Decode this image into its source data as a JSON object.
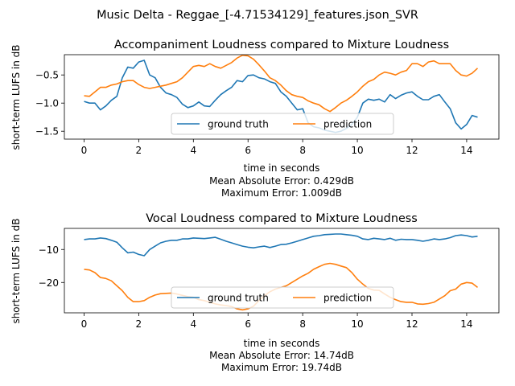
{
  "figure": {
    "suptitle": "Music Delta - Reggae_[-4.71534129]_features.json_SVR"
  },
  "colors": {
    "ground_truth": "#1f77b4",
    "prediction": "#ff7f0e",
    "axes": "#000000",
    "legend_border": "#cccccc"
  },
  "chart_data": [
    {
      "type": "line",
      "title": "Accompaniment Loudness compared to Mixture Loudness",
      "xlabel": "time in seconds",
      "ylabel": "short-term LUFS in dB",
      "xlim": [
        -0.72,
        15.18
      ],
      "ylim": [
        -1.64,
        -0.14
      ],
      "xticks": [
        0,
        2,
        4,
        6,
        8,
        10,
        12,
        14
      ],
      "yticks": [
        -1.5,
        -1.0,
        -0.5
      ],
      "ytick_labels": [
        "−1.5",
        "−1.0",
        "−0.5"
      ],
      "grid": false,
      "legend": {
        "placement": "lower center",
        "columns": 2
      },
      "stats": [
        "Mean Absolute Error: 0.429dB",
        "Maximum Error: 1.009dB"
      ],
      "series": [
        {
          "name": "ground truth",
          "x": [
            0,
            0.2,
            0.4,
            0.6,
            0.8,
            1.0,
            1.2,
            1.4,
            1.6,
            1.8,
            2.0,
            2.2,
            2.4,
            2.6,
            2.8,
            3.0,
            3.2,
            3.4,
            3.6,
            3.8,
            4.0,
            4.2,
            4.4,
            4.6,
            4.8,
            5.0,
            5.2,
            5.4,
            5.6,
            5.8,
            6.0,
            6.2,
            6.4,
            6.6,
            6.8,
            7.0,
            7.2,
            7.4,
            7.6,
            7.8,
            8.0,
            8.2,
            8.4,
            8.6,
            8.8,
            9.0,
            9.2,
            9.4,
            9.6,
            9.8,
            10.0,
            10.2,
            10.4,
            10.6,
            10.8,
            11.0,
            11.2,
            11.4,
            11.6,
            11.8,
            12.0,
            12.2,
            12.4,
            12.6,
            12.8,
            13.0,
            13.2,
            13.4,
            13.6,
            13.8,
            14.0,
            14.2,
            14.4
          ],
          "values": [
            -0.97,
            -1.0,
            -1.0,
            -1.12,
            -1.05,
            -0.95,
            -0.88,
            -0.55,
            -0.36,
            -0.38,
            -0.27,
            -0.24,
            -0.5,
            -0.55,
            -0.72,
            -0.82,
            -0.85,
            -0.9,
            -1.02,
            -1.08,
            -1.05,
            -0.98,
            -1.05,
            -1.06,
            -0.95,
            -0.85,
            -0.78,
            -0.72,
            -0.6,
            -0.62,
            -0.51,
            -0.5,
            -0.55,
            -0.57,
            -0.62,
            -0.65,
            -0.8,
            -0.88,
            -1.0,
            -1.12,
            -1.1,
            -1.35,
            -1.42,
            -1.44,
            -1.48,
            -1.5,
            -1.52,
            -1.5,
            -1.45,
            -1.38,
            -1.25,
            -1.0,
            -0.93,
            -0.95,
            -0.93,
            -0.98,
            -0.85,
            -0.92,
            -0.86,
            -0.82,
            -0.8,
            -0.88,
            -0.94,
            -0.94,
            -0.88,
            -0.85,
            -0.98,
            -1.1,
            -1.35,
            -1.46,
            -1.38,
            -1.22,
            -1.25
          ]
        },
        {
          "name": "prediction",
          "x": [
            0,
            0.2,
            0.4,
            0.6,
            0.8,
            1.0,
            1.2,
            1.4,
            1.6,
            1.8,
            2.0,
            2.2,
            2.4,
            2.6,
            2.8,
            3.0,
            3.2,
            3.4,
            3.6,
            3.8,
            4.0,
            4.2,
            4.4,
            4.6,
            4.8,
            5.0,
            5.2,
            5.4,
            5.6,
            5.8,
            6.0,
            6.2,
            6.4,
            6.6,
            6.8,
            7.0,
            7.2,
            7.4,
            7.6,
            7.8,
            8.0,
            8.2,
            8.4,
            8.6,
            8.8,
            9.0,
            9.2,
            9.4,
            9.6,
            9.8,
            10.0,
            10.2,
            10.4,
            10.6,
            10.8,
            11.0,
            11.2,
            11.4,
            11.6,
            11.8,
            12.0,
            12.2,
            12.4,
            12.6,
            12.8,
            13.0,
            13.2,
            13.4,
            13.6,
            13.8,
            14.0,
            14.2,
            14.4
          ],
          "values": [
            -0.87,
            -0.88,
            -0.8,
            -0.72,
            -0.72,
            -0.68,
            -0.66,
            -0.62,
            -0.6,
            -0.6,
            -0.67,
            -0.72,
            -0.74,
            -0.72,
            -0.7,
            -0.68,
            -0.65,
            -0.62,
            -0.55,
            -0.45,
            -0.35,
            -0.33,
            -0.35,
            -0.3,
            -0.35,
            -0.38,
            -0.33,
            -0.28,
            -0.2,
            -0.15,
            -0.16,
            -0.22,
            -0.32,
            -0.43,
            -0.55,
            -0.6,
            -0.68,
            -0.78,
            -0.85,
            -0.88,
            -0.9,
            -0.96,
            -1.0,
            -1.03,
            -1.1,
            -1.15,
            -1.08,
            -1.0,
            -0.95,
            -0.88,
            -0.8,
            -0.7,
            -0.62,
            -0.58,
            -0.5,
            -0.45,
            -0.47,
            -0.5,
            -0.45,
            -0.42,
            -0.3,
            -0.3,
            -0.35,
            -0.27,
            -0.25,
            -0.3,
            -0.3,
            -0.3,
            -0.42,
            -0.5,
            -0.52,
            -0.47,
            -0.38
          ]
        }
      ]
    },
    {
      "type": "line",
      "title": "Vocal Loudness compared to Mixture Loudness",
      "xlabel": "time in seconds",
      "ylabel": "short-term LUFS in dB",
      "xlim": [
        -0.72,
        15.18
      ],
      "ylim": [
        -29.2,
        -3.6
      ],
      "xticks": [
        0,
        2,
        4,
        6,
        8,
        10,
        12,
        14
      ],
      "yticks": [
        -20,
        -10
      ],
      "ytick_labels": [
        "−20",
        "−10"
      ],
      "grid": false,
      "legend": {
        "placement": "lower center",
        "columns": 2
      },
      "stats": [
        "Mean Absolute Error: 14.74dB",
        "Maximum Error: 19.74dB"
      ],
      "series": [
        {
          "name": "ground truth",
          "x": [
            0,
            0.2,
            0.4,
            0.6,
            0.8,
            1.0,
            1.2,
            1.4,
            1.6,
            1.8,
            2.0,
            2.2,
            2.4,
            2.6,
            2.8,
            3.0,
            3.2,
            3.4,
            3.6,
            3.8,
            4.0,
            4.2,
            4.4,
            4.6,
            4.8,
            5.0,
            5.2,
            5.4,
            5.6,
            5.8,
            6.0,
            6.2,
            6.4,
            6.6,
            6.8,
            7.0,
            7.2,
            7.4,
            7.6,
            7.8,
            8.0,
            8.2,
            8.4,
            8.6,
            8.8,
            9.0,
            9.2,
            9.4,
            9.6,
            9.8,
            10.0,
            10.2,
            10.4,
            10.6,
            10.8,
            11.0,
            11.2,
            11.4,
            11.6,
            11.8,
            12.0,
            12.2,
            12.4,
            12.6,
            12.8,
            13.0,
            13.2,
            13.4,
            13.6,
            13.8,
            14.0,
            14.2,
            14.4
          ],
          "values": [
            -7.0,
            -6.8,
            -6.8,
            -6.5,
            -6.7,
            -7.2,
            -7.8,
            -9.5,
            -11.0,
            -10.8,
            -11.5,
            -11.9,
            -10.0,
            -9.0,
            -8.0,
            -7.5,
            -7.2,
            -7.2,
            -6.8,
            -6.8,
            -6.5,
            -6.6,
            -6.7,
            -6.5,
            -6.3,
            -6.9,
            -7.5,
            -8.0,
            -8.5,
            -9.0,
            -9.3,
            -9.5,
            -9.2,
            -9.0,
            -9.4,
            -9.0,
            -8.5,
            -8.4,
            -8.0,
            -7.5,
            -7.0,
            -6.5,
            -6.0,
            -5.8,
            -5.5,
            -5.4,
            -5.3,
            -5.3,
            -5.5,
            -5.7,
            -6.0,
            -6.8,
            -7.0,
            -6.6,
            -6.8,
            -7.0,
            -6.6,
            -7.2,
            -6.9,
            -7.0,
            -7.0,
            -7.2,
            -7.5,
            -7.2,
            -6.8,
            -7.0,
            -6.8,
            -6.4,
            -5.8,
            -5.6,
            -5.8,
            -6.2,
            -6.0
          ]
        },
        {
          "name": "prediction",
          "x": [
            0,
            0.2,
            0.4,
            0.6,
            0.8,
            1.0,
            1.2,
            1.4,
            1.6,
            1.8,
            2.0,
            2.2,
            2.4,
            2.6,
            2.8,
            3.0,
            3.2,
            3.4,
            3.6,
            3.8,
            4.0,
            4.2,
            4.4,
            4.6,
            4.8,
            5.0,
            5.2,
            5.4,
            5.6,
            5.8,
            6.0,
            6.2,
            6.4,
            6.6,
            6.8,
            7.0,
            7.2,
            7.4,
            7.6,
            7.8,
            8.0,
            8.2,
            8.4,
            8.6,
            8.8,
            9.0,
            9.2,
            9.4,
            9.6,
            9.8,
            10.0,
            10.2,
            10.4,
            10.6,
            10.8,
            11.0,
            11.2,
            11.4,
            11.6,
            11.8,
            12.0,
            12.2,
            12.4,
            12.6,
            12.8,
            13.0,
            13.2,
            13.4,
            13.6,
            13.8,
            14.0,
            14.2,
            14.4
          ],
          "values": [
            -16.0,
            -16.2,
            -17.0,
            -18.5,
            -18.8,
            -19.5,
            -21.0,
            -22.5,
            -24.5,
            -25.8,
            -25.8,
            -25.5,
            -24.5,
            -23.8,
            -23.4,
            -23.3,
            -23.2,
            -23.5,
            -23.9,
            -24.3,
            -24.5,
            -25.2,
            -25.5,
            -26.0,
            -26.5,
            -26.8,
            -27.0,
            -27.3,
            -28.0,
            -28.3,
            -28.0,
            -27.2,
            -25.5,
            -24.0,
            -22.8,
            -22.0,
            -21.5,
            -21.0,
            -20.0,
            -19.0,
            -18.0,
            -17.2,
            -16.0,
            -15.2,
            -14.5,
            -14.2,
            -14.5,
            -15.0,
            -15.5,
            -17.0,
            -19.0,
            -20.5,
            -21.8,
            -22.3,
            -22.4,
            -23.5,
            -24.5,
            -25.2,
            -25.8,
            -26.0,
            -26.0,
            -26.5,
            -26.6,
            -26.4,
            -26.0,
            -25.0,
            -24.0,
            -22.5,
            -22.0,
            -20.5,
            -20.0,
            -20.2,
            -21.5
          ]
        }
      ]
    }
  ]
}
